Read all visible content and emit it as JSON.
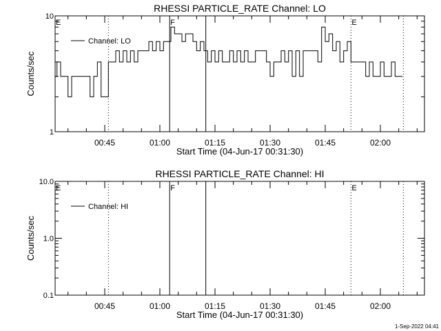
{
  "footer": "1-Sep-2022 04:41",
  "chart_data": [
    {
      "type": "line",
      "title": "RHESSI PARTICLE_RATE Channel: LO",
      "xlabel": "Start Time (04-Jun-17 00:31:30)",
      "ylabel": "Counts/sec",
      "yscale": "log",
      "ylim": [
        1,
        10
      ],
      "ytick_labels": [
        "1",
        "10"
      ],
      "xlim": [
        "00:31:30",
        "02:12:00"
      ],
      "xtick_labels": [
        "00:45",
        "01:00",
        "01:15",
        "01:30",
        "01:45",
        "02:00"
      ],
      "legend": {
        "label": "Channel: LO",
        "placement": "top-left"
      },
      "markers": [
        {
          "time": "00:46:00",
          "style": "dotted",
          "label": ""
        },
        {
          "time": "01:02:40",
          "style": "solid",
          "label": "F"
        },
        {
          "time": "01:12:30",
          "style": "solid",
          "label": ""
        },
        {
          "time": "01:52:00",
          "style": "dotted",
          "label": "E"
        },
        {
          "time": "02:06:15",
          "style": "dotted",
          "label": ""
        }
      ],
      "start_label": "E",
      "series": [
        {
          "x": [
            "00:31:30",
            "00:32",
            "00:33",
            "00:34",
            "00:35",
            "00:36",
            "00:37",
            "00:38",
            "00:39",
            "00:40",
            "00:41",
            "00:42",
            "00:43",
            "00:44",
            "00:45",
            "00:46",
            "00:47",
            "00:48",
            "00:49",
            "00:50",
            "00:51",
            "00:52",
            "00:53",
            "00:54",
            "00:55",
            "00:56",
            "00:57",
            "00:58",
            "00:59",
            "01:00",
            "01:01",
            "01:02",
            "01:03",
            "01:04",
            "01:05",
            "01:06",
            "01:07",
            "01:08",
            "01:09",
            "01:10",
            "01:11",
            "01:12",
            "01:13",
            "01:14",
            "01:15",
            "01:16",
            "01:17",
            "01:18",
            "01:19",
            "01:20",
            "01:21",
            "01:22",
            "01:23",
            "01:24",
            "01:25",
            "01:26",
            "01:27",
            "01:28",
            "01:29",
            "01:30",
            "01:31",
            "01:32",
            "01:33",
            "01:34",
            "01:35",
            "01:36",
            "01:37",
            "01:38",
            "01:39",
            "01:40",
            "01:41",
            "01:42",
            "01:43",
            "01:44",
            "01:45",
            "01:46",
            "01:47",
            "01:48",
            "01:49",
            "01:50",
            "01:51",
            "01:52",
            "01:53",
            "01:54",
            "01:55",
            "01:56",
            "01:57",
            "01:58",
            "01:59",
            "02:00",
            "02:01",
            "02:02",
            "02:03",
            "02:04",
            "02:05",
            "02:06"
          ],
          "y": [
            3,
            4,
            3,
            3,
            2,
            3,
            3,
            3,
            3,
            3,
            2,
            3,
            4,
            2,
            2,
            4,
            4,
            5,
            4,
            5,
            4,
            5,
            4,
            5,
            5,
            5,
            6,
            5,
            6,
            5,
            6,
            6,
            8,
            7,
            7,
            6,
            7,
            7,
            6,
            5,
            6,
            5,
            4,
            5,
            4,
            5,
            4,
            4,
            5,
            4,
            5,
            4,
            5,
            4,
            4,
            5,
            5,
            5,
            4,
            3,
            4,
            4,
            5,
            4,
            5,
            3,
            5,
            3,
            5,
            5,
            5,
            5,
            4,
            8,
            6,
            7,
            5,
            6,
            4,
            5,
            6,
            4,
            4,
            4,
            4,
            3,
            4,
            3,
            3,
            4,
            3,
            3,
            4,
            3,
            3,
            3
          ]
        }
      ]
    },
    {
      "type": "line",
      "title": "RHESSI PARTICLE_RATE Channel: HI",
      "xlabel": "Start Time (04-Jun-17 00:31:30)",
      "ylabel": "Counts/sec",
      "yscale": "log",
      "ylim": [
        0.1,
        10
      ],
      "ytick_labels": [
        "0.1",
        "1.0",
        "10.0"
      ],
      "xlim": [
        "00:31:30",
        "02:12:00"
      ],
      "xtick_labels": [
        "00:45",
        "01:00",
        "01:15",
        "01:30",
        "01:45",
        "02:00"
      ],
      "legend": {
        "label": "Channel: HI",
        "placement": "top-left"
      },
      "markers": [
        {
          "time": "00:46:00",
          "style": "dotted",
          "label": ""
        },
        {
          "time": "01:02:40",
          "style": "solid",
          "label": "F"
        },
        {
          "time": "01:12:30",
          "style": "solid",
          "label": ""
        },
        {
          "time": "01:52:00",
          "style": "dotted",
          "label": "E"
        },
        {
          "time": "02:06:15",
          "style": "dotted",
          "label": ""
        }
      ],
      "start_label": "E",
      "series": []
    }
  ]
}
